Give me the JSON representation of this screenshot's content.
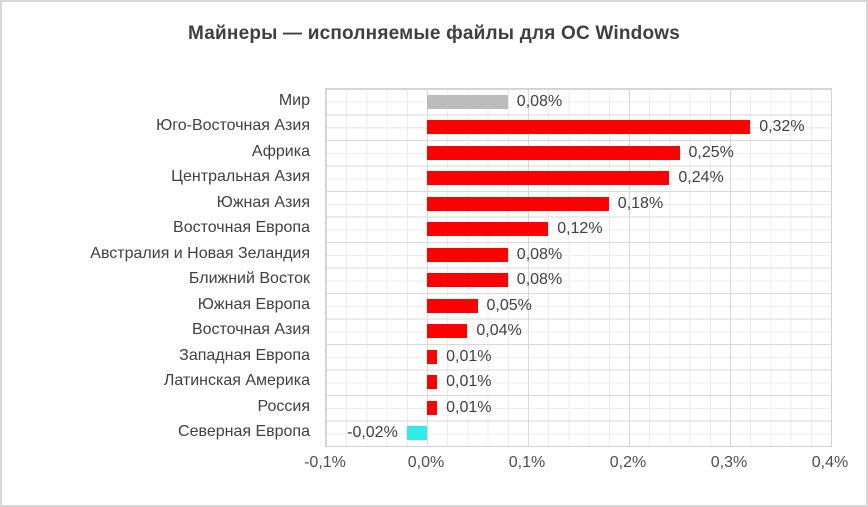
{
  "frame": {
    "background": "#ffffff",
    "border_color": "#d8d8d8"
  },
  "chart_data": {
    "type": "bar",
    "orientation": "horizontal",
    "title": "Майнеры — исполняемые файлы для ОС Windows",
    "categories": [
      "Мир",
      "Юго-Восточная Азия",
      "Африка",
      "Центральная Азия",
      "Южная Азия",
      "Восточная Европа",
      "Австралия и Новая Зеландия",
      "Ближний Восток",
      "Южная Европа",
      "Восточная Азия",
      "Западная Европа",
      "Латинская Америка",
      "Россия",
      "Северная Европа"
    ],
    "values": [
      0.08,
      0.32,
      0.25,
      0.24,
      0.18,
      0.12,
      0.08,
      0.08,
      0.05,
      0.04,
      0.01,
      0.01,
      0.01,
      -0.02
    ],
    "value_labels": [
      "0,08%",
      "0,32%",
      "0,25%",
      "0,24%",
      "0,18%",
      "0,12%",
      "0,08%",
      "0,08%",
      "0,05%",
      "0,04%",
      "0,01%",
      "0,01%",
      "0,01%",
      "-0,02%"
    ],
    "bar_colors": [
      "#bcbcbc",
      "#ff0000",
      "#ff0000",
      "#ff0000",
      "#ff0000",
      "#ff0000",
      "#ff0000",
      "#ff0000",
      "#ff0000",
      "#ff0000",
      "#ff0000",
      "#ff0000",
      "#ff0000",
      "#2debe6"
    ],
    "accent_colors": {
      "positive_bar": "#ff0000",
      "world_bar": "#bcbcbc",
      "negative_bar": "#2debe6"
    },
    "xlabel": "",
    "ylabel": "",
    "xlim": [
      -0.1,
      0.4
    ],
    "x_ticks": [
      {
        "value": -0.1,
        "label": "-0,1%"
      },
      {
        "value": 0.0,
        "label": "0,0%"
      },
      {
        "value": 0.1,
        "label": "0,1%"
      },
      {
        "value": 0.2,
        "label": "0,2%"
      },
      {
        "value": 0.3,
        "label": "0,3%"
      },
      {
        "value": 0.4,
        "label": "0,4%"
      }
    ],
    "grid": {
      "major": true,
      "minor": true,
      "major_color": "#d9d9d9",
      "minor_color": "#ededed"
    },
    "legend": "none"
  }
}
